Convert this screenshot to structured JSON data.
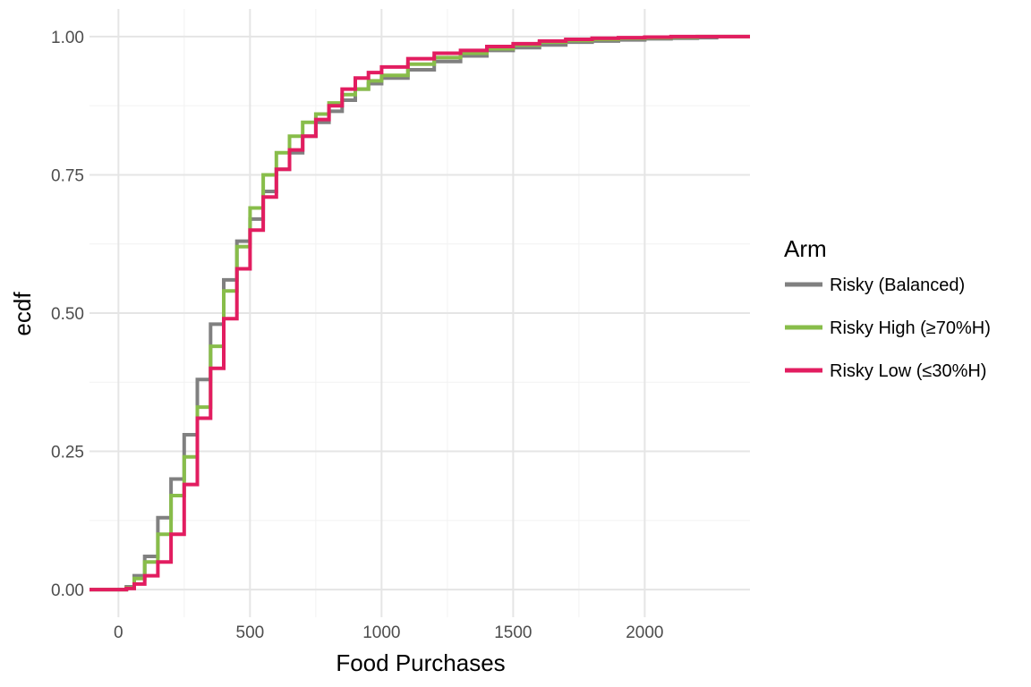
{
  "chart_data": {
    "type": "line",
    "subtype": "step-ecdf",
    "xlabel": "Food Purchases",
    "ylabel": "ecdf",
    "xlim": [
      -110,
      2400
    ],
    "ylim": [
      -0.05,
      1.05
    ],
    "x_ticks": [
      0,
      500,
      1000,
      1500,
      2000
    ],
    "x_tick_labels": [
      "0",
      "500",
      "1000",
      "1500",
      "2000"
    ],
    "y_ticks": [
      0,
      0.25,
      0.5,
      0.75,
      1
    ],
    "y_tick_labels": [
      "0.00",
      "0.25",
      "0.50",
      "0.75",
      "1.00"
    ],
    "grid": true,
    "legend": {
      "title": "Arm",
      "position": "right"
    },
    "series": [
      {
        "name": "Risky (Balanced)",
        "color": "#808080",
        "x": [
          -110,
          0,
          30,
          60,
          100,
          150,
          200,
          250,
          300,
          350,
          400,
          450,
          500,
          550,
          600,
          650,
          700,
          750,
          800,
          850,
          900,
          950,
          1000,
          1100,
          1200,
          1300,
          1400,
          1500,
          1600,
          1700,
          1800,
          1900,
          2000,
          2100,
          2200,
          2280
        ],
        "values": [
          0,
          0,
          0.005,
          0.025,
          0.06,
          0.13,
          0.2,
          0.28,
          0.38,
          0.48,
          0.56,
          0.63,
          0.67,
          0.72,
          0.76,
          0.79,
          0.82,
          0.845,
          0.865,
          0.885,
          0.905,
          0.915,
          0.925,
          0.94,
          0.955,
          0.965,
          0.975,
          0.98,
          0.985,
          0.99,
          0.992,
          0.994,
          0.996,
          0.997,
          0.998,
          0.998
        ]
      },
      {
        "name": "Risky High (≥70%H)",
        "color": "#88bd4a",
        "x": [
          -110,
          0,
          30,
          60,
          100,
          150,
          200,
          250,
          300,
          350,
          400,
          450,
          500,
          550,
          600,
          650,
          700,
          750,
          800,
          850,
          900,
          950,
          1000,
          1100,
          1200,
          1300,
          1400,
          1500,
          1600,
          1700,
          1800,
          1900,
          2000,
          2100,
          2200,
          2300,
          2400
        ],
        "values": [
          0,
          0,
          0.003,
          0.02,
          0.05,
          0.1,
          0.17,
          0.24,
          0.33,
          0.44,
          0.54,
          0.62,
          0.69,
          0.75,
          0.79,
          0.82,
          0.845,
          0.86,
          0.88,
          0.895,
          0.905,
          0.92,
          0.93,
          0.95,
          0.962,
          0.97,
          0.978,
          0.985,
          0.99,
          0.993,
          0.995,
          0.997,
          0.998,
          0.999,
          1,
          1,
          1
        ]
      },
      {
        "name": "Risky Low (≤30%H)",
        "color": "#e21d60",
        "x": [
          -110,
          0,
          30,
          60,
          100,
          150,
          200,
          250,
          300,
          350,
          400,
          450,
          500,
          550,
          600,
          650,
          700,
          750,
          800,
          850,
          900,
          950,
          1000,
          1100,
          1200,
          1300,
          1400,
          1500,
          1600,
          1700,
          1800,
          1900,
          2000,
          2100,
          2200,
          2300,
          2400
        ],
        "values": [
          0,
          0,
          0.002,
          0.01,
          0.025,
          0.05,
          0.1,
          0.19,
          0.31,
          0.4,
          0.49,
          0.58,
          0.65,
          0.71,
          0.76,
          0.795,
          0.82,
          0.85,
          0.875,
          0.905,
          0.925,
          0.935,
          0.945,
          0.96,
          0.97,
          0.975,
          0.982,
          0.987,
          0.992,
          0.995,
          0.997,
          0.998,
          0.999,
          1,
          1,
          1,
          1
        ]
      }
    ]
  }
}
